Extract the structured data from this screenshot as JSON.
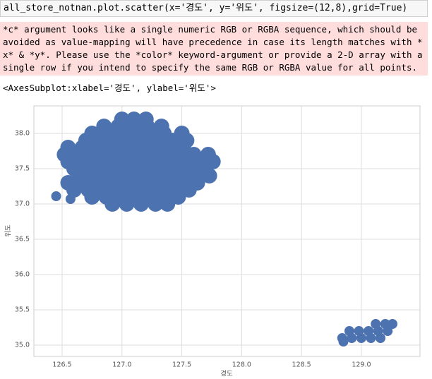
{
  "code": "all_store_notnan.plot.scatter(x='경도', y='위도', figsize=(12,8),grid=True)",
  "warning": "*c* argument looks like a single numeric RGB or RGBA sequence, which should be avoided as value-mapping will have precedence in case its length matches with *x* & *y*.  Please use the *color* keyword-argument or provide a 2-D array with a single row if you intend to specify the same RGB or RGBA value for all points.",
  "output": "<AxesSubplot:xlabel='경도', ylabel='위도'>",
  "chart_data": {
    "type": "scatter",
    "x_label": "경도",
    "y_label": "위도",
    "color": "#4c72b0",
    "grid": true,
    "xlim": [
      126.264,
      129.49
    ],
    "ylim": [
      34.84,
      38.39
    ],
    "xticks": [
      126.5,
      {
        "value": 127,
        "label": "127.0"
      },
      127.5,
      {
        "value": 128,
        "label": "128.0"
      },
      128.5,
      {
        "value": 129,
        "label": "129.0"
      }
    ],
    "yticks": [
      {
        "value": 35,
        "label": "35.0"
      },
      35.5,
      {
        "value": 36,
        "label": "36.0"
      },
      36.5,
      {
        "value": 37,
        "label": "37.0"
      },
      37.5,
      {
        "value": 38,
        "label": "38.0"
      }
    ],
    "x": [
      127.0,
      127.1,
      127.2,
      126.85,
      126.97,
      127.09,
      127.21,
      127.33,
      126.75,
      126.87,
      126.99,
      127.11,
      127.23,
      127.35,
      127.5,
      126.7,
      126.82,
      126.94,
      127.06,
      127.18,
      127.3,
      127.42,
      127.54,
      126.55,
      126.67,
      126.79,
      126.91,
      127.03,
      127.15,
      127.27,
      127.39,
      127.51,
      126.52,
      126.64,
      126.76,
      126.88,
      127.0,
      127.12,
      127.24,
      127.36,
      127.48,
      127.6,
      127.72,
      126.55,
      126.67,
      126.79,
      126.91,
      127.03,
      127.15,
      127.27,
      127.39,
      127.51,
      127.63,
      127.76,
      126.6,
      126.72,
      126.84,
      126.96,
      127.08,
      127.2,
      127.32,
      127.44,
      127.56,
      127.68,
      126.65,
      126.77,
      126.89,
      127.01,
      127.13,
      127.25,
      127.37,
      127.49,
      127.61,
      127.73,
      126.55,
      126.67,
      126.79,
      126.91,
      127.03,
      127.15,
      127.27,
      127.39,
      127.51,
      127.63,
      126.6,
      126.72,
      126.84,
      126.96,
      127.08,
      127.2,
      127.32,
      127.44,
      127.56,
      126.75,
      126.87,
      126.99,
      127.11,
      127.23,
      127.35,
      127.47,
      126.92,
      127.04,
      127.16,
      127.28,
      127.38,
      126.45,
      126.57,
      129.12,
      129.2,
      129.26,
      128.9,
      128.98,
      129.06,
      129.14,
      129.22,
      128.84,
      128.92,
      129.0,
      129.08,
      129.16,
      128.85
    ],
    "values": [
      38.2,
      38.2,
      38.2,
      38.1,
      38.1,
      38.1,
      38.1,
      38.1,
      38.0,
      38.0,
      38.0,
      38.0,
      38.0,
      38.0,
      38.0,
      37.9,
      37.9,
      37.9,
      37.9,
      37.9,
      37.9,
      37.9,
      37.9,
      37.8,
      37.8,
      37.8,
      37.8,
      37.8,
      37.8,
      37.8,
      37.8,
      37.8,
      37.7,
      37.7,
      37.7,
      37.7,
      37.7,
      37.7,
      37.7,
      37.7,
      37.7,
      37.7,
      37.7,
      37.6,
      37.6,
      37.6,
      37.6,
      37.6,
      37.6,
      37.6,
      37.6,
      37.6,
      37.6,
      37.6,
      37.5,
      37.5,
      37.5,
      37.5,
      37.5,
      37.5,
      37.5,
      37.5,
      37.5,
      37.5,
      37.4,
      37.4,
      37.4,
      37.4,
      37.4,
      37.4,
      37.4,
      37.4,
      37.4,
      37.4,
      37.3,
      37.3,
      37.3,
      37.3,
      37.3,
      37.3,
      37.3,
      37.3,
      37.3,
      37.3,
      37.2,
      37.2,
      37.2,
      37.2,
      37.2,
      37.2,
      37.2,
      37.2,
      37.2,
      37.1,
      37.1,
      37.1,
      37.1,
      37.1,
      37.1,
      37.1,
      37.0,
      37.0,
      37.0,
      37.0,
      37.0,
      37.11,
      37.07,
      35.3,
      35.3,
      35.3,
      35.2,
      35.2,
      35.2,
      35.2,
      35.2,
      35.1,
      35.1,
      35.1,
      35.1,
      35.1,
      35.05
    ]
  }
}
